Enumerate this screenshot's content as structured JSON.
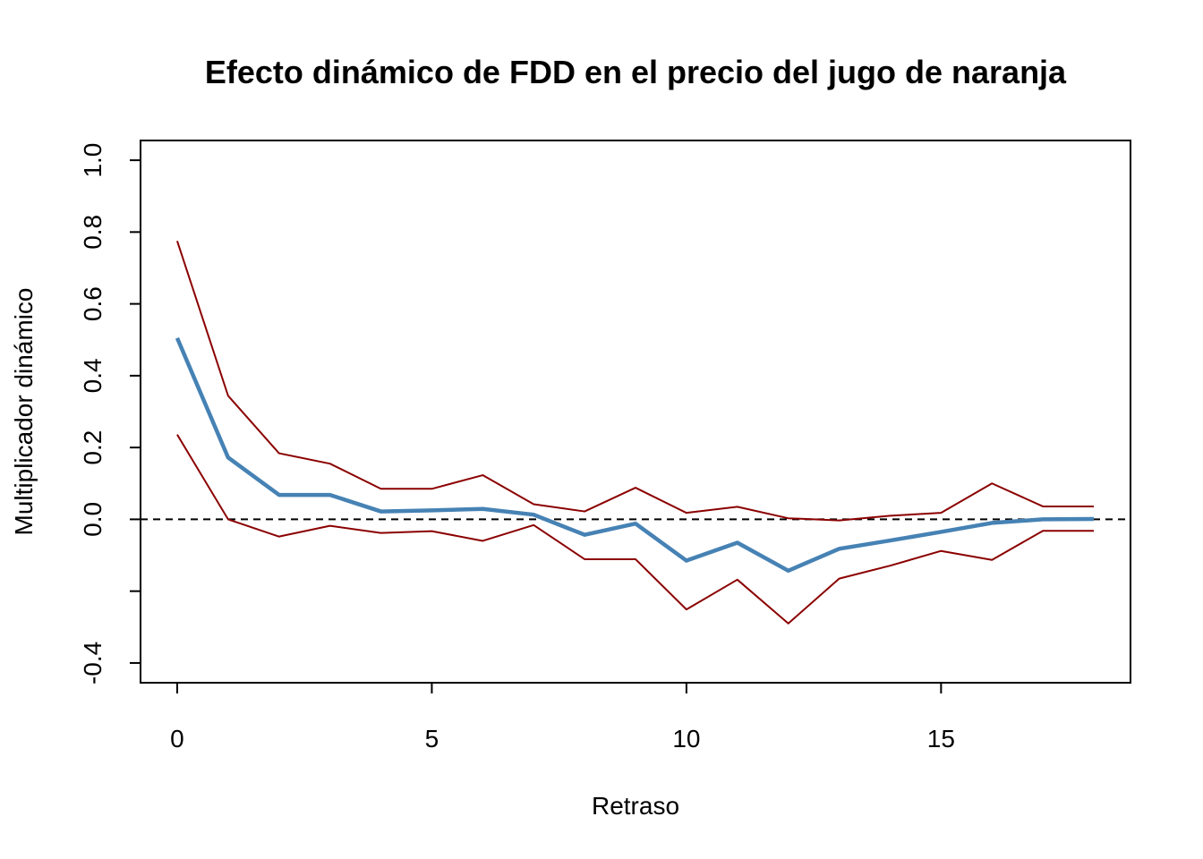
{
  "chart_data": {
    "type": "line",
    "title": "Efecto dinámico de FDD en el precio del jugo de naranja",
    "xlabel": "Retraso",
    "ylabel": "Multiplicador dinámico",
    "xlim": [
      -0.72,
      18.72
    ],
    "ylim": [
      -0.455,
      1.055
    ],
    "x_ticks": [
      0,
      5,
      10,
      15
    ],
    "x_tick_labels": [
      "0",
      "5",
      "10",
      "15"
    ],
    "y_ticks": [
      -0.4,
      -0.2,
      0.0,
      0.2,
      0.4,
      0.6,
      0.8,
      1.0
    ],
    "y_tick_labels": [
      "-0.4",
      "",
      "0.0",
      "0.2",
      "0.4",
      "0.6",
      "0.8",
      "1.0"
    ],
    "reference_line": {
      "y": 0,
      "style": "dashed",
      "color": "#000000"
    },
    "x": [
      0,
      1,
      2,
      3,
      4,
      5,
      6,
      7,
      8,
      9,
      10,
      11,
      12,
      13,
      14,
      15,
      16,
      17,
      18
    ],
    "series": [
      {
        "role": "estimate",
        "color": "#4682b4",
        "values": [
          0.505,
          0.172,
          0.068,
          0.068,
          0.022,
          0.025,
          0.029,
          0.013,
          -0.043,
          -0.012,
          -0.115,
          -0.065,
          -0.143,
          -0.082,
          -0.059,
          -0.035,
          -0.01,
          0.0,
          0.001
        ]
      },
      {
        "role": "upper-bound",
        "color": "#8b0000",
        "values": [
          0.775,
          0.344,
          0.184,
          0.155,
          0.085,
          0.085,
          0.123,
          0.042,
          0.022,
          0.088,
          0.018,
          0.035,
          0.003,
          -0.003,
          0.01,
          0.018,
          0.1,
          0.036,
          0.036
        ]
      },
      {
        "role": "lower-bound",
        "color": "#8b0000",
        "values": [
          0.236,
          0.0,
          -0.048,
          -0.018,
          -0.038,
          -0.033,
          -0.06,
          -0.016,
          -0.111,
          -0.111,
          -0.251,
          -0.168,
          -0.29,
          -0.165,
          -0.129,
          -0.088,
          -0.113,
          -0.032,
          -0.032
        ]
      }
    ]
  }
}
